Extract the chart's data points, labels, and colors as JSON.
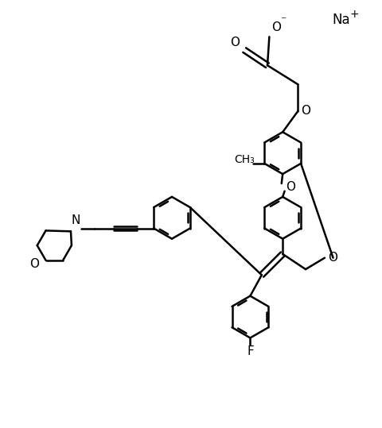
{
  "background_color": "#ffffff",
  "line_color": "#000000",
  "line_width": 1.8,
  "font_size": 11,
  "na_label": "Na",
  "na_sup": "+",
  "f_label": "F",
  "o_label": "O",
  "n_label": "N",
  "ch3_label": "CH₃",
  "carboxylate_o1": "O",
  "carboxylate_o2": "O⁻",
  "figsize": [
    4.8,
    5.39
  ],
  "dpi": 100
}
